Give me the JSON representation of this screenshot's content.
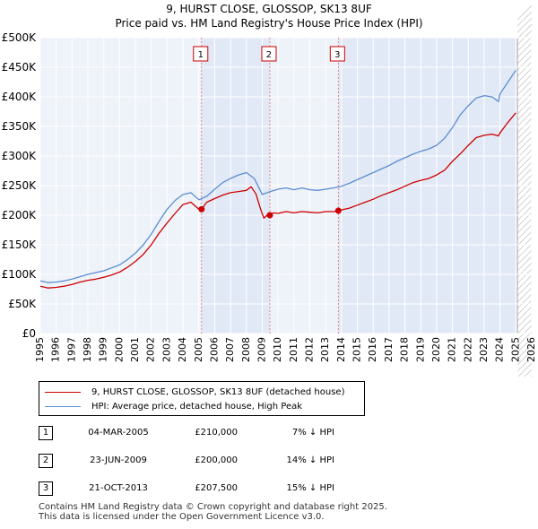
{
  "title": "9, HURST CLOSE, GLOSSOP, SK13 8UF",
  "subtitle": "Price paid vs. HM Land Registry's House Price Index (HPI)",
  "chart_data": {
    "type": "line",
    "xlim": [
      1995,
      2026
    ],
    "ylim": [
      0,
      500000
    ],
    "y_ticks": [
      0,
      50000,
      100000,
      150000,
      200000,
      250000,
      300000,
      350000,
      400000,
      450000,
      500000
    ],
    "y_tick_labels": [
      "£0",
      "£50K",
      "£100K",
      "£150K",
      "£200K",
      "£250K",
      "£300K",
      "£350K",
      "£400K",
      "£450K",
      "£500K"
    ],
    "x_ticks": [
      1995,
      1996,
      1997,
      1998,
      1999,
      2000,
      2001,
      2002,
      2003,
      2004,
      2005,
      2006,
      2007,
      2008,
      2009,
      2010,
      2011,
      2012,
      2013,
      2014,
      2015,
      2016,
      2017,
      2018,
      2019,
      2020,
      2021,
      2022,
      2023,
      2024,
      2025,
      2026
    ],
    "x_tick_labels": [
      "1995",
      "1996",
      "1997",
      "1998",
      "1999",
      "2000",
      "2001",
      "2002",
      "2003",
      "2004",
      "2005",
      "2006",
      "2007",
      "2008",
      "2009",
      "2010",
      "2011",
      "2012",
      "2013",
      "2014",
      "2015",
      "2016",
      "2017",
      "2018",
      "2019",
      "2020",
      "2021",
      "2022",
      "2023",
      "2024",
      "2025",
      "2026"
    ],
    "grid": true,
    "forecast_start": 2025.1,
    "series": [
      {
        "name": "9, HURST CLOSE, GLOSSOP, SK13 8UF (detached house)",
        "color": "#cc0000",
        "x": [
          1995.0,
          1995.5,
          1996.0,
          1996.5,
          1997.0,
          1997.5,
          1998.0,
          1998.5,
          1999.0,
          1999.5,
          2000.0,
          2000.5,
          2001.0,
          2001.5,
          2002.0,
          2002.5,
          2003.0,
          2003.5,
          2004.0,
          2004.5,
          2005.0,
          2005.17,
          2005.5,
          2006.0,
          2006.5,
          2007.0,
          2007.5,
          2008.0,
          2008.3,
          2008.6,
          2008.9,
          2009.1,
          2009.3,
          2009.48,
          2009.7,
          2010.0,
          2010.5,
          2011.0,
          2011.5,
          2012.0,
          2012.5,
          2013.0,
          2013.5,
          2013.8,
          2014.0,
          2014.5,
          2015.0,
          2015.5,
          2016.0,
          2016.5,
          2017.0,
          2017.5,
          2018.0,
          2018.5,
          2019.0,
          2019.5,
          2020.0,
          2020.5,
          2021.0,
          2021.5,
          2022.0,
          2022.5,
          2023.0,
          2023.5,
          2023.9,
          2024.0,
          2024.5,
          2025.0
        ],
        "values": [
          80000,
          77000,
          78000,
          80000,
          83000,
          87000,
          90000,
          92000,
          95000,
          99000,
          104000,
          112000,
          122000,
          134000,
          150000,
          170000,
          187000,
          203000,
          218000,
          222000,
          210000,
          210000,
          222000,
          228000,
          234000,
          238000,
          240000,
          242000,
          248000,
          236000,
          210000,
          195000,
          200000,
          200000,
          204000,
          203000,
          206000,
          204000,
          206000,
          205000,
          204000,
          206000,
          206000,
          207500,
          209000,
          212000,
          217000,
          222000,
          227000,
          233000,
          238000,
          243000,
          249000,
          255000,
          259000,
          262000,
          268000,
          276000,
          291000,
          304000,
          318000,
          331000,
          335000,
          337000,
          334000,
          339000,
          357000,
          373000
        ]
      },
      {
        "name": "HPI: Average price, detached house, High Peak",
        "color": "#5b8dcf",
        "x": [
          1995.0,
          1995.5,
          1996.0,
          1996.5,
          1997.0,
          1997.5,
          1998.0,
          1998.5,
          1999.0,
          1999.5,
          2000.0,
          2000.5,
          2001.0,
          2001.5,
          2002.0,
          2002.5,
          2003.0,
          2003.5,
          2004.0,
          2004.5,
          2005.0,
          2005.5,
          2006.0,
          2006.5,
          2007.0,
          2007.5,
          2008.0,
          2008.5,
          2009.0,
          2009.5,
          2010.0,
          2010.5,
          2011.0,
          2011.5,
          2012.0,
          2012.5,
          2013.0,
          2013.5,
          2014.0,
          2014.5,
          2015.0,
          2015.5,
          2016.0,
          2016.5,
          2017.0,
          2017.5,
          2018.0,
          2018.5,
          2019.0,
          2019.5,
          2020.0,
          2020.5,
          2021.0,
          2021.5,
          2022.0,
          2022.5,
          2023.0,
          2023.5,
          2023.9,
          2024.0,
          2024.5,
          2025.0
        ],
        "values": [
          89000,
          86000,
          87000,
          89000,
          92000,
          96000,
          100000,
          103000,
          106000,
          111000,
          116000,
          125000,
          136000,
          150000,
          168000,
          190000,
          210000,
          225000,
          235000,
          238000,
          226000,
          232000,
          244000,
          255000,
          262000,
          268000,
          272000,
          262000,
          235000,
          240000,
          244000,
          246000,
          243000,
          246000,
          243000,
          242000,
          244000,
          246000,
          249000,
          254000,
          260000,
          266000,
          272000,
          278000,
          284000,
          291000,
          297000,
          303000,
          308000,
          312000,
          318000,
          330000,
          348000,
          370000,
          385000,
          398000,
          402000,
          400000,
          392000,
          405000,
          425000,
          445000
        ]
      }
    ],
    "transactions": [
      {
        "label": "1",
        "x": 2005.17,
        "value": 210000
      },
      {
        "label": "2",
        "x": 2009.48,
        "value": 200000
      },
      {
        "label": "3",
        "x": 2013.8,
        "value": 207500
      }
    ]
  },
  "legend": {
    "property_label": "9, HURST CLOSE, GLOSSOP, SK13 8UF (detached house)",
    "hpi_label": "HPI: Average price, detached house, High Peak",
    "property_color": "#cc0000",
    "hpi_color": "#5b8dcf"
  },
  "sales": [
    {
      "num": "1",
      "date": "04-MAR-2005",
      "price": "£210,000",
      "hpi": "7% ↓ HPI"
    },
    {
      "num": "2",
      "date": "23-JUN-2009",
      "price": "£200,000",
      "hpi": "14% ↓ HPI"
    },
    {
      "num": "3",
      "date": "21-OCT-2013",
      "price": "£207,500",
      "hpi": "15% ↓ HPI"
    }
  ],
  "footer": {
    "line1": "Contains HM Land Registry data © Crown copyright and database right 2025.",
    "line2": "This data is licensed under the Open Government Licence v3.0."
  }
}
